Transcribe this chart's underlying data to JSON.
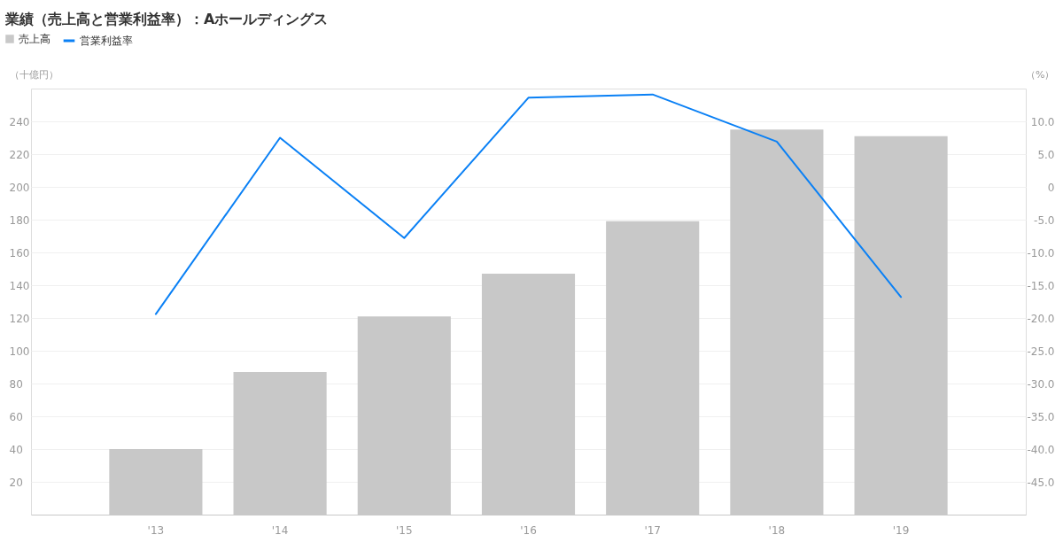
{
  "chart_data": {
    "type": "bar",
    "title": "業績（売上高と営業利益率）：Aホールディングス",
    "ylabel": "（十億円）",
    "y2label": "（%）",
    "categories": [
      "'13",
      "'14",
      "'15",
      "'16",
      "'17",
      "'18",
      "'19"
    ],
    "series": [
      {
        "name": "売上高",
        "color": "#c8c8c8",
        "values": [
          40,
          87,
          121,
          147,
          179,
          235,
          231
        ]
      },
      {
        "name": "営業利益率",
        "type": "line",
        "color": "#0a80f5",
        "axis": "y2",
        "values": [
          -19.4,
          7.5,
          -7.8,
          13.6,
          14.1,
          6.9,
          -16.8
        ]
      }
    ],
    "ylim": [
      0,
      260
    ],
    "yticks": [
      20,
      40,
      60,
      80,
      100,
      120,
      140,
      160,
      180,
      200,
      220,
      240
    ],
    "y2lim": [
      -50,
      15
    ],
    "y2ticks": [
      {
        "value": 10,
        "label": "10.0"
      },
      {
        "value": 5,
        "label": "5.0"
      },
      0,
      {
        "value": -5,
        "label": "-5.0"
      },
      {
        "value": -10,
        "label": "-10.0"
      },
      {
        "value": -15,
        "label": "-15.0"
      },
      {
        "value": -20,
        "label": "-20.0"
      },
      {
        "value": -25,
        "label": "-25.0"
      },
      {
        "value": -30,
        "label": "-30.0"
      },
      {
        "value": -35,
        "label": "-35.0"
      },
      {
        "value": -40,
        "label": "-40.0"
      },
      {
        "value": -45,
        "label": "-45.0"
      }
    ],
    "grid": "y",
    "legend": "top left"
  }
}
